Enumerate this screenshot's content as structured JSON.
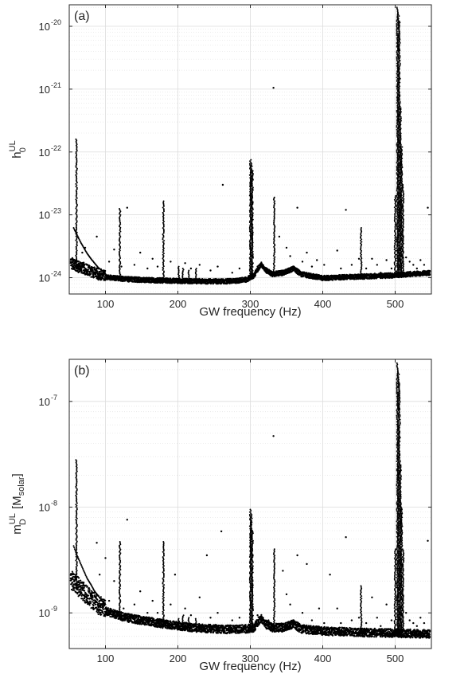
{
  "chart_data": [
    {
      "type": "scatter",
      "panel_label": "(a)",
      "xlabel": "GW frequency (Hz)",
      "ylabel_main": "h",
      "ylabel_sub": "0",
      "ylabel_sup": "UL",
      "xlim": [
        50,
        550
      ],
      "xscale": "linear",
      "yscale": "log",
      "ylim": [
        5.5e-25,
        2.2e-20
      ],
      "xticks": [
        100,
        200,
        300,
        400,
        500
      ],
      "yticks": [
        {
          "base": "10",
          "exp": "-24",
          "value": 1e-24
        },
        {
          "base": "10",
          "exp": "-23",
          "value": 1e-23
        },
        {
          "base": "10",
          "exp": "-22",
          "value": 1e-22
        },
        {
          "base": "10",
          "exp": "-21",
          "value": 1e-21
        },
        {
          "base": "10",
          "exp": "-20",
          "value": 1e-20
        }
      ],
      "grid": true,
      "marker_color": "#000000",
      "floor": [
        [
          52,
          1.6e-24
        ],
        [
          60,
          1.4e-24
        ],
        [
          70,
          1.3e-24
        ],
        [
          80,
          1.15e-24
        ],
        [
          90,
          1.05e-24
        ],
        [
          100,
          9.8e-25
        ],
        [
          120,
          9.3e-25
        ],
        [
          140,
          9e-25
        ],
        [
          160,
          8.8e-25
        ],
        [
          180,
          8.7e-25
        ],
        [
          200,
          8.6e-25
        ],
        [
          220,
          8.5e-25
        ],
        [
          250,
          8.4e-25
        ],
        [
          280,
          8.5e-25
        ],
        [
          295,
          9e-25
        ],
        [
          305,
          1.05e-24
        ],
        [
          315,
          1.6e-24
        ],
        [
          320,
          1.3e-24
        ],
        [
          330,
          1.1e-24
        ],
        [
          345,
          1.15e-24
        ],
        [
          360,
          1.35e-24
        ],
        [
          370,
          1.1e-24
        ],
        [
          400,
          9.5e-25
        ],
        [
          450,
          1e-24
        ],
        [
          500,
          1.05e-24
        ],
        [
          520,
          1.1e-24
        ],
        [
          548,
          1.15e-24
        ]
      ],
      "lowfreq_line": [
        [
          56,
          6.2e-24
        ],
        [
          60,
          5e-24
        ],
        [
          65,
          3.8e-24
        ],
        [
          70,
          3e-24
        ],
        [
          75,
          2.4e-24
        ],
        [
          80,
          2e-24
        ],
        [
          85,
          1.7e-24
        ],
        [
          90,
          1.45e-24
        ],
        [
          95,
          1.3e-24
        ],
        [
          100,
          1.15e-24
        ]
      ],
      "spikes": [
        {
          "f": 60,
          "top": 1.6e-22
        },
        {
          "f": 120,
          "top": 1.25e-23
        },
        {
          "f": 180,
          "top": 1.65e-23
        },
        {
          "f": 201,
          "top": 1.5e-24
        },
        {
          "f": 207,
          "top": 1.4e-24
        },
        {
          "f": 215,
          "top": 1.3e-24
        },
        {
          "f": 225,
          "top": 1.4e-24
        },
        {
          "f": 300,
          "top": 7.5e-23
        },
        {
          "f": 301.5,
          "top": 6.5e-23
        },
        {
          "f": 303,
          "top": 5e-23
        },
        {
          "f": 333,
          "top": 1.9e-23
        },
        {
          "f": 453,
          "top": 6.2e-24
        },
        {
          "f": 500,
          "top": 2e-23
        },
        {
          "f": 503,
          "top": 2e-20
        },
        {
          "f": 504.5,
          "top": 1.6e-20
        },
        {
          "f": 506,
          "top": 1.2e-20
        },
        {
          "f": 507.5,
          "top": 5e-22
        },
        {
          "f": 509,
          "top": 1.2e-22
        },
        {
          "f": 511,
          "top": 3e-23
        }
      ],
      "outliers": [
        [
          68,
          2.5e-24
        ],
        [
          72,
          3e-24
        ],
        [
          88,
          4.5e-24
        ],
        [
          105,
          1.8e-24
        ],
        [
          112,
          2.8e-24
        ],
        [
          122,
          1.5e-24
        ],
        [
          130,
          1.3e-23
        ],
        [
          140,
          1.6e-24
        ],
        [
          148,
          2.5e-24
        ],
        [
          158,
          1.4e-24
        ],
        [
          165,
          2e-24
        ],
        [
          172,
          1.5e-24
        ],
        [
          190,
          1.8e-24
        ],
        [
          210,
          1.7e-24
        ],
        [
          218,
          1.4e-24
        ],
        [
          230,
          1.6e-24
        ],
        [
          245,
          1.3e-24
        ],
        [
          255,
          1.5e-24
        ],
        [
          262,
          3e-23
        ],
        [
          275,
          1.2e-24
        ],
        [
          285,
          1.4e-24
        ],
        [
          310,
          1.5e-24
        ],
        [
          325,
          1.3e-24
        ],
        [
          332,
          1.05e-21
        ],
        [
          340,
          4.5e-24
        ],
        [
          350,
          3e-24
        ],
        [
          355,
          2.2e-24
        ],
        [
          365,
          1.3e-23
        ],
        [
          372,
          1.8e-24
        ],
        [
          378,
          2.5e-24
        ],
        [
          385,
          1.5e-24
        ],
        [
          392,
          1.9e-24
        ],
        [
          402,
          1.6e-24
        ],
        [
          420,
          2.7e-24
        ],
        [
          425,
          1.4e-24
        ],
        [
          432,
          1.2e-23
        ],
        [
          440,
          1.6e-24
        ],
        [
          450,
          2e-24
        ],
        [
          460,
          1.4e-24
        ],
        [
          468,
          2e-24
        ],
        [
          475,
          1.6e-24
        ],
        [
          480,
          1.2e-24
        ],
        [
          488,
          1.9e-24
        ],
        [
          495,
          1.4e-24
        ],
        [
          515,
          2.1e-24
        ],
        [
          520,
          1.8e-24
        ],
        [
          525,
          1.6e-24
        ],
        [
          530,
          1.4e-24
        ],
        [
          535,
          1.9e-24
        ],
        [
          540,
          1.6e-24
        ],
        [
          545,
          1.3e-23
        ]
      ]
    },
    {
      "type": "scatter",
      "panel_label": "(b)",
      "xlabel": "GW frequency (Hz)",
      "ylabel_main": "m",
      "ylabel_sub": "D",
      "ylabel_sup": "UL",
      "ylabel_rest": " [M",
      "ylabel_rest_sub": "solar",
      "ylabel_end": "]",
      "xlim": [
        50,
        550
      ],
      "xscale": "linear",
      "yscale": "log",
      "ylim": [
        4.6e-10,
        2.5e-07
      ],
      "xticks": [
        100,
        200,
        300,
        400,
        500
      ],
      "yticks": [
        {
          "base": "10",
          "exp": "-9",
          "value": 1e-09
        },
        {
          "base": "10",
          "exp": "-8",
          "value": 1e-08
        },
        {
          "base": "10",
          "exp": "-7",
          "value": 1e-07
        }
      ],
      "grid": true,
      "marker_color": "#000000",
      "floor": [
        [
          52,
          1.9e-09
        ],
        [
          60,
          1.7e-09
        ],
        [
          70,
          1.45e-09
        ],
        [
          80,
          1.25e-09
        ],
        [
          90,
          1.1e-09
        ],
        [
          100,
          1e-09
        ],
        [
          120,
          9e-10
        ],
        [
          140,
          8.4e-10
        ],
        [
          160,
          8e-10
        ],
        [
          180,
          7.6e-10
        ],
        [
          200,
          7.3e-10
        ],
        [
          220,
          7e-10
        ],
        [
          250,
          6.8e-10
        ],
        [
          280,
          6.7e-10
        ],
        [
          295,
          6.8e-10
        ],
        [
          305,
          7e-10
        ],
        [
          315,
          8.7e-10
        ],
        [
          320,
          7.6e-10
        ],
        [
          330,
          7e-10
        ],
        [
          345,
          7e-10
        ],
        [
          360,
          7.6e-10
        ],
        [
          370,
          6.8e-10
        ],
        [
          400,
          6.5e-10
        ],
        [
          450,
          6.3e-10
        ],
        [
          500,
          6.2e-10
        ],
        [
          520,
          6.15e-10
        ],
        [
          548,
          6.1e-10
        ]
      ],
      "lowfreq_line": [
        [
          56,
          4.3e-09
        ],
        [
          60,
          3.6e-09
        ],
        [
          65,
          3e-09
        ],
        [
          70,
          2.5e-09
        ],
        [
          75,
          2.1e-09
        ],
        [
          80,
          1.85e-09
        ],
        [
          85,
          1.6e-09
        ],
        [
          90,
          1.45e-09
        ],
        [
          95,
          1.3e-09
        ],
        [
          100,
          1.2e-09
        ]
      ],
      "spikes": [
        {
          "f": 60,
          "top": 2.8e-08
        },
        {
          "f": 120,
          "top": 4.7e-09
        },
        {
          "f": 180,
          "top": 4.7e-09
        },
        {
          "f": 201,
          "top": 8.8e-10
        },
        {
          "f": 207,
          "top": 9.5e-10
        },
        {
          "f": 215,
          "top": 9e-10
        },
        {
          "f": 225,
          "top": 8.8e-10
        },
        {
          "f": 300,
          "top": 9.5e-09
        },
        {
          "f": 301.5,
          "top": 8.5e-09
        },
        {
          "f": 303,
          "top": 6e-09
        },
        {
          "f": 333,
          "top": 4e-09
        },
        {
          "f": 453,
          "top": 1.8e-09
        },
        {
          "f": 500,
          "top": 4e-09
        },
        {
          "f": 503,
          "top": 2.3e-07
        },
        {
          "f": 504.5,
          "top": 1.9e-07
        },
        {
          "f": 506,
          "top": 1.5e-07
        },
        {
          "f": 507.5,
          "top": 2.5e-08
        },
        {
          "f": 509,
          "top": 1e-08
        },
        {
          "f": 511,
          "top": 4e-09
        }
      ],
      "outliers": [
        [
          68,
          1.5e-09
        ],
        [
          72,
          1.8e-09
        ],
        [
          88,
          4.6e-09
        ],
        [
          92,
          2.3e-09
        ],
        [
          100,
          3.3e-09
        ],
        [
          105,
          1.3e-09
        ],
        [
          112,
          2e-09
        ],
        [
          125,
          1.1e-09
        ],
        [
          130,
          7.6e-09
        ],
        [
          140,
          1.2e-09
        ],
        [
          148,
          1.6e-09
        ],
        [
          158,
          1e-09
        ],
        [
          165,
          1.3e-09
        ],
        [
          172,
          1e-09
        ],
        [
          190,
          1.2e-09
        ],
        [
          196,
          2.3e-09
        ],
        [
          210,
          1.1e-09
        ],
        [
          218,
          9.5e-10
        ],
        [
          230,
          1.4e-09
        ],
        [
          240,
          3.5e-09
        ],
        [
          245,
          9e-10
        ],
        [
          255,
          1e-09
        ],
        [
          260,
          5.9e-09
        ],
        [
          275,
          8.5e-10
        ],
        [
          285,
          9e-10
        ],
        [
          310,
          9.5e-10
        ],
        [
          325,
          8.5e-10
        ],
        [
          332,
          4.7e-08
        ],
        [
          345,
          2.5e-09
        ],
        [
          350,
          1.5e-09
        ],
        [
          355,
          1.2e-09
        ],
        [
          365,
          3.5e-09
        ],
        [
          372,
          1e-09
        ],
        [
          378,
          2.9e-09
        ],
        [
          385,
          8.5e-10
        ],
        [
          395,
          1.1e-09
        ],
        [
          402,
          8e-10
        ],
        [
          410,
          2.3e-09
        ],
        [
          420,
          1.1e-09
        ],
        [
          425,
          8e-10
        ],
        [
          432,
          5.2e-09
        ],
        [
          440,
          8.5e-10
        ],
        [
          450,
          9e-10
        ],
        [
          460,
          8e-10
        ],
        [
          468,
          1.4e-09
        ],
        [
          475,
          9e-10
        ],
        [
          480,
          7.5e-10
        ],
        [
          488,
          1.2e-09
        ],
        [
          495,
          8.5e-10
        ],
        [
          515,
          1e-09
        ],
        [
          520,
          8.5e-10
        ],
        [
          525,
          8e-10
        ],
        [
          530,
          7.5e-10
        ],
        [
          535,
          9e-10
        ],
        [
          540,
          8e-10
        ],
        [
          545,
          4.8e-09
        ]
      ]
    }
  ]
}
